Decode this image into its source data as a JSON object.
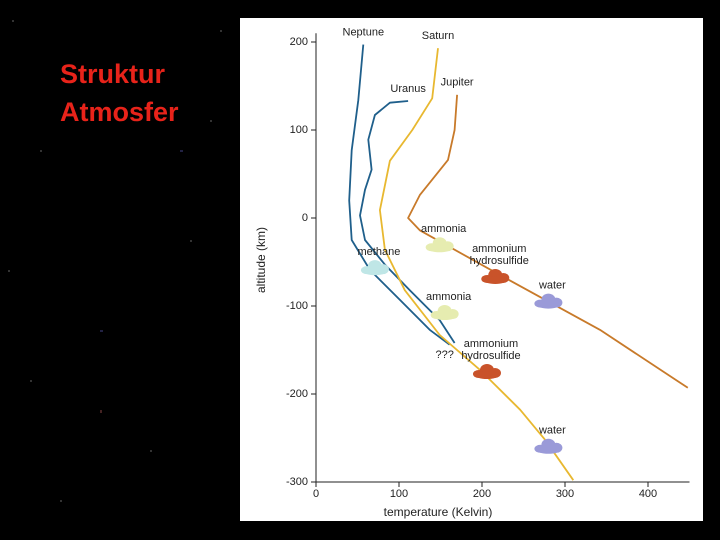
{
  "slide": {
    "title_lines": [
      "Struktur",
      "Atmosfer"
    ]
  },
  "chart_data": {
    "type": "line",
    "xlabel": "temperature (Kelvin)",
    "ylabel": "altitude (km)",
    "xlim": [
      0,
      450
    ],
    "ylim": [
      -300,
      210
    ],
    "xticks": [
      0,
      100,
      200,
      300,
      400
    ],
    "yticks": [
      -300,
      -200,
      -100,
      0,
      100,
      200
    ],
    "series": [
      {
        "name": "Neptune",
        "color": "#1f5f8b",
        "x": [
          57,
          51,
          43,
          40,
          43,
          65,
          101,
          137,
          161
        ],
        "values": [
          197,
          134,
          77,
          20,
          -25,
          -59,
          -93,
          -127,
          -144
        ]
      },
      {
        "name": "Uranus",
        "color": "#1f5f8b",
        "x": [
          111,
          89,
          71,
          63,
          67,
          59,
          53,
          59,
          83,
          113,
          149,
          167
        ],
        "values": [
          133,
          131,
          117,
          89,
          55,
          32,
          3,
          -25,
          -53,
          -82,
          -116,
          -142
        ]
      },
      {
        "name": "Saturn",
        "color": "#e8b830",
        "x": [
          147,
          140,
          116,
          89,
          77,
          83,
          107,
          149,
          198,
          246,
          276,
          310
        ],
        "values": [
          193,
          136,
          100,
          65,
          9,
          -36,
          -82,
          -133,
          -173,
          -218,
          -252,
          -298
        ]
      },
      {
        "name": "Jupiter",
        "color": "#c87a2a",
        "x": [
          170,
          167,
          159,
          125,
          111,
          125,
          222,
          342,
          448
        ],
        "values": [
          140,
          100,
          66,
          26,
          0,
          -14,
          -65,
          -127,
          -193
        ]
      }
    ],
    "annotations": [
      {
        "lines": [
          "methane"
        ],
        "x": 71,
        "y": -57,
        "color": "#bfe6e6"
      },
      {
        "lines": [
          "ammonia"
        ],
        "x": 149,
        "y": -31,
        "color": "#e6ecb0"
      },
      {
        "lines": [
          "ammonium",
          "hydrosulfide"
        ],
        "x": 216,
        "y": -67,
        "color": "#c9532a"
      },
      {
        "lines": [
          "water"
        ],
        "x": 280,
        "y": -95,
        "color": "#9a9ad8"
      },
      {
        "lines": [
          "ammonia"
        ],
        "x": 155,
        "y": -108,
        "color": "#e6ecb0"
      },
      {
        "lines": [
          "ammonium",
          "hydrosulfide"
        ],
        "x": 206,
        "y": -175,
        "color": "#c9532a"
      },
      {
        "lines": [
          "water"
        ],
        "x": 280,
        "y": -260,
        "color": "#9a9ad8"
      }
    ],
    "note": {
      "text": "???",
      "x": 155,
      "y": -156
    }
  }
}
